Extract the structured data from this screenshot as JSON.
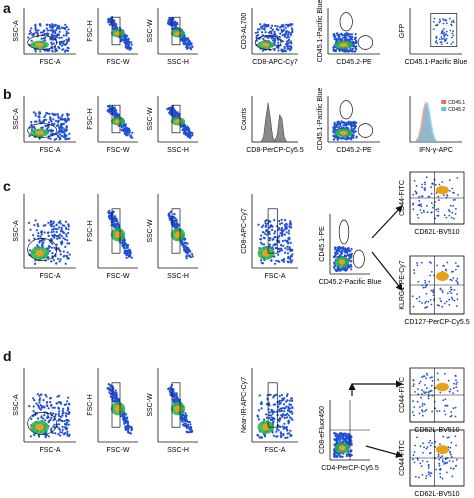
{
  "panels": [
    {
      "letter": "a",
      "plots": [
        {
          "type": "density",
          "ylabel": "SSC-A",
          "xlabel": "FSC-A",
          "gate": "ellipse"
        },
        {
          "type": "density",
          "ylabel": "FSC-H",
          "xlabel": "FSC-W",
          "gate": "rect"
        },
        {
          "type": "density",
          "ylabel": "SSC-W",
          "xlabel": "SSC-H",
          "gate": "rect"
        },
        {
          "type": "density",
          "ylabel": "CD3-AL700",
          "xlabel": "CD8-APC-Cy7",
          "gate": "ellipse"
        },
        {
          "type": "density",
          "ylabel": "CD45.1-Pacific Blue",
          "xlabel": "CD45.2-PE",
          "gate": "two-ellipse"
        },
        {
          "type": "gfp",
          "ylabel": "GFP",
          "xlabel": "CD45.1-Pacific Blue",
          "gate": "rect"
        }
      ]
    },
    {
      "letter": "b",
      "plots": [
        {
          "type": "density",
          "ylabel": "SSC-A",
          "xlabel": "FSC-A",
          "gate": "ellipse"
        },
        {
          "type": "density",
          "ylabel": "FSC-H",
          "xlabel": "FSC-W",
          "gate": "rect"
        },
        {
          "type": "density",
          "ylabel": "SSC-W",
          "xlabel": "SSC-H",
          "gate": "rect"
        },
        {
          "type": "histogram",
          "ylabel": "Counts",
          "xlabel": "CD8-PerCP-Cy5.5"
        },
        {
          "type": "density",
          "ylabel": "CD45.1-Pacific Blue",
          "xlabel": "CD45.2-PE",
          "gate": "two-ellipse"
        },
        {
          "type": "overlay",
          "ylabel": "",
          "xlabel": "IFN-γ-APC",
          "legend": [
            "CD45.1",
            "CD45.2"
          ]
        }
      ]
    },
    {
      "letter": "c",
      "plots": [
        {
          "type": "density",
          "ylabel": "SSC-A",
          "xlabel": "FSC-A",
          "gate": "ellipse"
        },
        {
          "type": "density",
          "ylabel": "FSC-H",
          "xlabel": "FSC-W",
          "gate": "rect"
        },
        {
          "type": "density",
          "ylabel": "SSC-W",
          "xlabel": "SSC-H",
          "gate": "rect"
        },
        {
          "type": "density",
          "ylabel": "CD8-APC-Cy7",
          "xlabel": "FSC-A",
          "gate": "rect"
        },
        {
          "type": "density",
          "ylabel": "CD45.1-PE",
          "xlabel": "CD45.2-Pacific Blue",
          "gate": "two-ellipse"
        },
        {
          "type": "quad",
          "ylabel": "CD44-FITC",
          "xlabel": "CD62L-BV510"
        },
        {
          "type": "quad",
          "ylabel": "KLRG1-PE-Cy7",
          "xlabel": "CD127-PerCP-Cy5.5"
        }
      ]
    },
    {
      "letter": "d",
      "plots": [
        {
          "type": "density",
          "ylabel": "SSC-A",
          "xlabel": "FSC-A",
          "gate": "ellipse"
        },
        {
          "type": "density",
          "ylabel": "FSC-H",
          "xlabel": "FSC-W",
          "gate": "rect"
        },
        {
          "type": "density",
          "ylabel": "SSC-W",
          "xlabel": "SSC-H",
          "gate": "rect"
        },
        {
          "type": "density",
          "ylabel": "Near-IR-APC-Cy7",
          "xlabel": "FSC-A",
          "gate": "rect"
        },
        {
          "type": "density",
          "ylabel": "CD8-eFluor450",
          "xlabel": "CD4-PerCP-Cy5.5",
          "gate": "quad"
        },
        {
          "type": "quad",
          "ylabel": "CD44-FITC",
          "xlabel": "CD62L-BV510"
        },
        {
          "type": "quad",
          "ylabel": "CD44-FITC",
          "xlabel": "CD62L-BV510"
        }
      ]
    }
  ],
  "colors": {
    "density": "#1f4fd6",
    "hot": "#e8a21a",
    "mid": "#27b34a",
    "hist_fill": "#8a8a8a",
    "overlay_red": "#e8735a",
    "overlay_blue": "#5fc3e8"
  }
}
